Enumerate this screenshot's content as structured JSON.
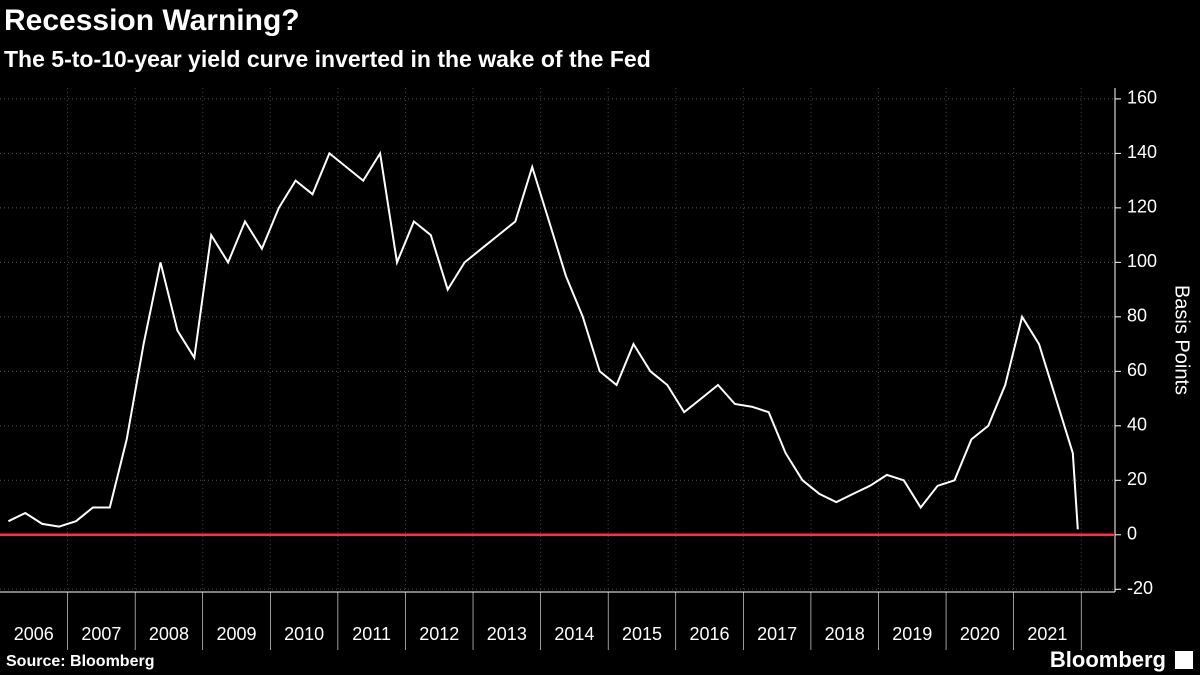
{
  "chart_data": {
    "type": "line",
    "title": "Recession Warning?",
    "subtitle": "The 5-to-10-year yield curve inverted in the wake of the Fed",
    "y_label": "Basis Points",
    "source": "Source: Bloomberg",
    "brand": "Bloomberg",
    "x": [
      2006.125,
      2006.375,
      2006.625,
      2006.875,
      2007.125,
      2007.375,
      2007.625,
      2007.875,
      2008.125,
      2008.375,
      2008.625,
      2008.875,
      2009.125,
      2009.375,
      2009.625,
      2009.875,
      2010.125,
      2010.375,
      2010.625,
      2010.875,
      2011.125,
      2011.375,
      2011.625,
      2011.875,
      2012.125,
      2012.375,
      2012.625,
      2012.875,
      2013.125,
      2013.375,
      2013.625,
      2013.875,
      2014.125,
      2014.375,
      2014.625,
      2014.875,
      2015.125,
      2015.375,
      2015.625,
      2015.875,
      2016.125,
      2016.375,
      2016.625,
      2016.875,
      2017.125,
      2017.375,
      2017.625,
      2017.875,
      2018.125,
      2018.375,
      2018.625,
      2018.875,
      2019.125,
      2019.375,
      2019.625,
      2019.875,
      2020.125,
      2020.375,
      2020.625,
      2020.875,
      2021.125,
      2021.375,
      2021.625,
      2021.875,
      2021.95
    ],
    "series": [
      {
        "name": "5-to-10-year yield curve",
        "color": "#ffffff",
        "values": [
          5,
          8,
          4,
          3,
          5,
          10,
          10,
          35,
          70,
          100,
          75,
          65,
          110,
          100,
          115,
          105,
          120,
          130,
          125,
          140,
          135,
          130,
          140,
          100,
          115,
          110,
          90,
          100,
          105,
          110,
          115,
          135,
          115,
          95,
          80,
          60,
          55,
          70,
          60,
          55,
          45,
          50,
          55,
          48,
          47,
          45,
          30,
          20,
          15,
          12,
          15,
          18,
          22,
          20,
          10,
          18,
          20,
          35,
          40,
          55,
          80,
          70,
          50,
          30,
          2
        ]
      }
    ],
    "reference_line": {
      "value": 0,
      "color": "#ff2d45"
    },
    "xlim": [
      2006,
      2022.5
    ],
    "xticks": [
      {
        "value": 2006.5,
        "label": "2006"
      },
      {
        "value": 2007.5,
        "label": "2007"
      },
      {
        "value": 2008.5,
        "label": "2008"
      },
      {
        "value": 2009.5,
        "label": "2009"
      },
      {
        "value": 2010.5,
        "label": "2010"
      },
      {
        "value": 2011.5,
        "label": "2011"
      },
      {
        "value": 2012.5,
        "label": "2012"
      },
      {
        "value": 2013.5,
        "label": "2013"
      },
      {
        "value": 2014.5,
        "label": "2014"
      },
      {
        "value": 2015.5,
        "label": "2015"
      },
      {
        "value": 2016.5,
        "label": "2016"
      },
      {
        "value": 2017.5,
        "label": "2017"
      },
      {
        "value": 2018.5,
        "label": "2018"
      },
      {
        "value": 2019.5,
        "label": "2019"
      },
      {
        "value": 2020.5,
        "label": "2020"
      },
      {
        "value": 2021.5,
        "label": "2021"
      }
    ],
    "ylim": [
      -21,
      164
    ],
    "yticks": [
      -20,
      0,
      20,
      40,
      60,
      80,
      100,
      120,
      140,
      160
    ],
    "grid": true
  }
}
